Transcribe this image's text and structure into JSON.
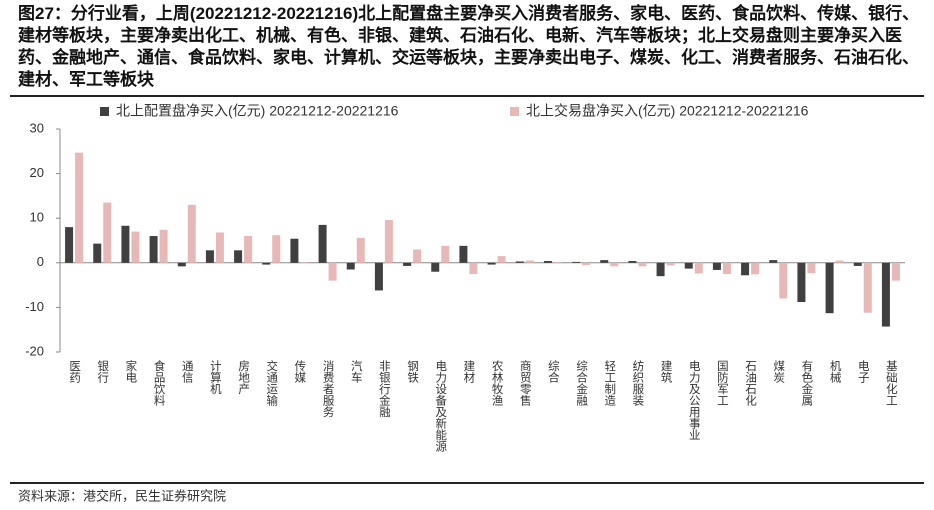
{
  "chart_data": {
    "type": "bar",
    "title": "图27：分行业看，上周(20221212-20221216)北上配置盘主要净买入消费者服务、家电、医药、食品饮料、传媒、银行、建材等板块，主要净卖出化工、机械、有色、非银、建筑、石油石化、电新、汽车等板块；北上交易盘则主要净买入医药、金融地产、通信、食品饮料、家电、计算机、交运等板块，主要净卖出电子、煤炭、化工、消费者服务、石油石化、建材、军工等板块",
    "source": "资料来源：港交所，民生证券研究院",
    "categories": [
      "医药",
      "银行",
      "家电",
      "食品饮料",
      "通信",
      "计算机",
      "房地产",
      "交通运输",
      "传媒",
      "消费者服务",
      "汽车",
      "非银行金融",
      "钢铁",
      "电力设备及新能源",
      "建材",
      "农林牧渔",
      "商贸零售",
      "综合",
      "综合金融",
      "轻工制造",
      "纺织服装",
      "建筑",
      "电力及公用事业",
      "国防军工",
      "石油石化",
      "煤炭",
      "有色金属",
      "机械",
      "电子",
      "基础化工"
    ],
    "series": [
      {
        "name": "北上配置盘净买入(亿元) 20221212-20221216",
        "color": "#404040",
        "values": [
          8,
          4.3,
          8.3,
          6,
          -0.8,
          2.8,
          2.8,
          -0.4,
          5.4,
          8.5,
          -1.5,
          -6.2,
          -0.7,
          -2,
          3.8,
          -0.4,
          0.3,
          0.4,
          0.2,
          0.6,
          0.4,
          -3,
          -1.3,
          -1.6,
          -2.8,
          0.6,
          -8.8,
          -11.3,
          -0.7,
          -14.3
        ]
      },
      {
        "name": "北上交易盘净买入(亿元) 20221212-20221216",
        "color": "#e6b9b8",
        "values": [
          24.7,
          13.5,
          7,
          7.4,
          13,
          6.8,
          6,
          6.2,
          0.1,
          -4,
          5.6,
          9.6,
          3,
          3.8,
          -2.5,
          1.5,
          0.5,
          0.1,
          -0.5,
          -0.8,
          -0.8,
          -0.6,
          -2.4,
          -2.5,
          -2.6,
          -8,
          -2.3,
          0.5,
          -11.2,
          -4
        ]
      }
    ],
    "ylim": [
      -20,
      30
    ],
    "yticks": [
      -20,
      -10,
      0,
      10,
      20,
      30
    ]
  }
}
